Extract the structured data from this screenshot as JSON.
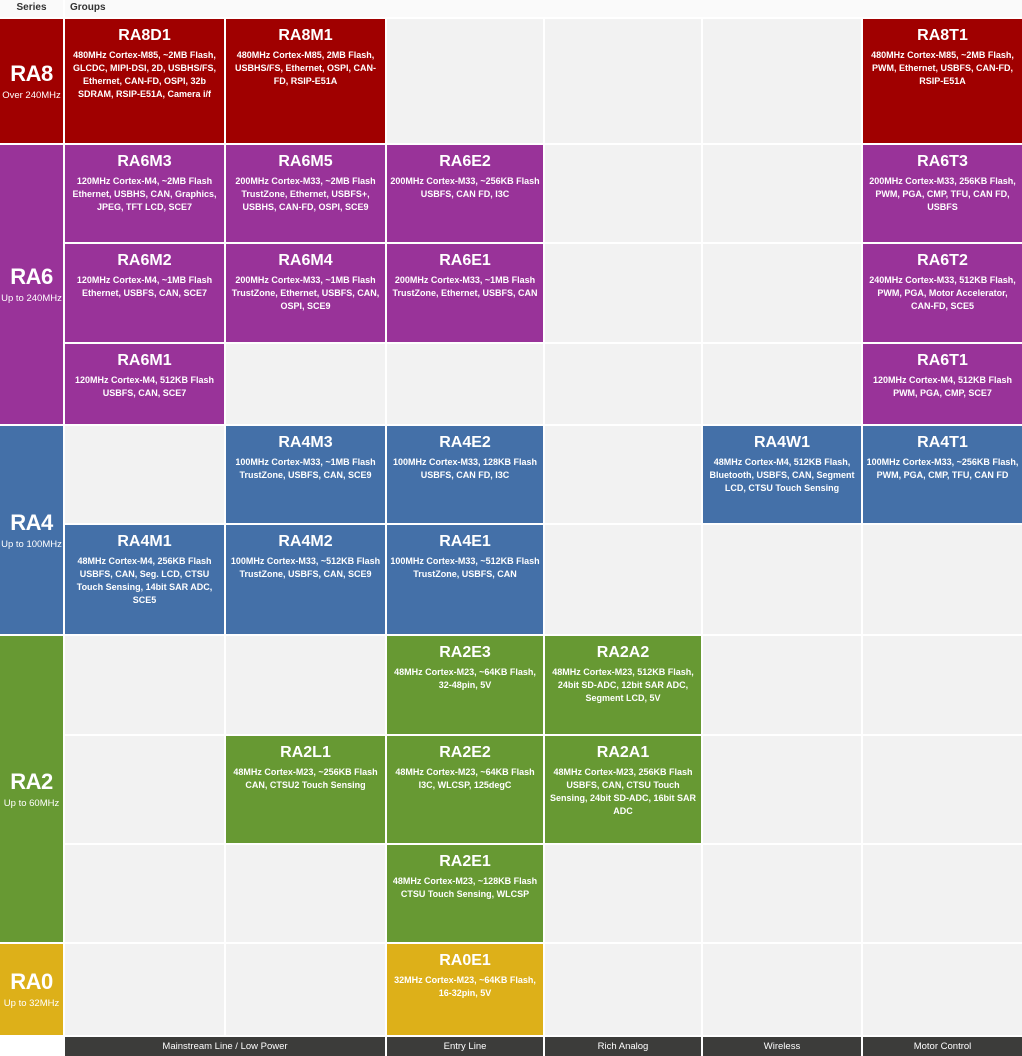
{
  "header": {
    "series": "Series",
    "groups": "Groups"
  },
  "colors": {
    "RA8": "#a00000",
    "RA6": "#993399",
    "RA4": "#4470a8",
    "RA2": "#679933",
    "RA0": "#ddb019",
    "footer": "#3c3c3a",
    "empty": "#f2f2f2"
  },
  "series": [
    {
      "name": "RA8",
      "speed": "Over 240MHz"
    },
    {
      "name": "RA6",
      "speed": "Up to 240MHz"
    },
    {
      "name": "RA4",
      "speed": "Up to 100MHz"
    },
    {
      "name": "RA2",
      "speed": "Up to 60MHz"
    },
    {
      "name": "RA0",
      "speed": "Up to 32MHz"
    }
  ],
  "groups": [
    {
      "name": "RA8D1",
      "desc": "480MHz Cortex-M85, ~2MB Flash, GLCDC, MIPI-DSI, 2D, USBHS/FS, Ethernet, CAN-FD, OSPI, 32b SDRAM, RSIP-E51A, Camera i/f"
    },
    {
      "name": "RA8M1",
      "desc": "480MHz Cortex-M85, 2MB Flash, USBHS/FS, Ethernet, OSPI, CAN-FD, RSIP-E51A"
    },
    {
      "name": "RA8T1",
      "desc": "480MHz Cortex-M85, ~2MB Flash, PWM, Ethernet, USBFS, CAN-FD, RSIP-E51A"
    },
    {
      "name": "RA6M3",
      "desc": "120MHz Cortex-M4, ~2MB Flash Ethernet, USBHS, CAN, Graphics, JPEG, TFT LCD, SCE7"
    },
    {
      "name": "RA6M5",
      "desc": "200MHz Cortex-M33, ~2MB Flash TrustZone, Ethernet, USBFS+, USBHS, CAN-FD, OSPI, SCE9"
    },
    {
      "name": "RA6E2",
      "desc": "200MHz Cortex-M33, ~256KB Flash USBFS, CAN FD, I3C"
    },
    {
      "name": "RA6T3",
      "desc": "200MHz Cortex-M33, 256KB Flash, PWM, PGA, CMP, TFU, CAN FD, USBFS"
    },
    {
      "name": "RA6M2",
      "desc": "120MHz Cortex-M4, ~1MB Flash Ethernet, USBFS, CAN, SCE7"
    },
    {
      "name": "RA6M4",
      "desc": "200MHz Cortex-M33, ~1MB Flash TrustZone, Ethernet, USBFS, CAN, OSPI, SCE9"
    },
    {
      "name": "RA6E1",
      "desc": "200MHz Cortex-M33, ~1MB Flash TrustZone, Ethernet, USBFS, CAN"
    },
    {
      "name": "RA6T2",
      "desc": "240MHz Cortex-M33, 512KB Flash, PWM, PGA, Motor Accelerator, CAN-FD, SCE5"
    },
    {
      "name": "RA6M1",
      "desc": "120MHz Cortex-M4, 512KB Flash USBFS, CAN, SCE7"
    },
    {
      "name": "RA6T1",
      "desc": "120MHz Cortex-M4, 512KB Flash PWM, PGA, CMP, SCE7"
    },
    {
      "name": "RA4M3",
      "desc": "100MHz Cortex-M33, ~1MB Flash TrustZone, USBFS, CAN, SCE9"
    },
    {
      "name": "RA4E2",
      "desc": "100MHz Cortex-M33, 128KB Flash USBFS, CAN FD, I3C"
    },
    {
      "name": "RA4W1",
      "desc": "48MHz Cortex-M4, 512KB Flash, Bluetooth, USBFS, CAN, Segment LCD, CTSU Touch Sensing"
    },
    {
      "name": "RA4T1",
      "desc": "100MHz Cortex-M33, ~256KB Flash, PWM, PGA, CMP, TFU, CAN FD"
    },
    {
      "name": "RA4M1",
      "desc": "48MHz Cortex-M4, 256KB Flash USBFS, CAN, Seg. LCD, CTSU Touch Sensing, 14bit SAR ADC, SCE5"
    },
    {
      "name": "RA4M2",
      "desc": "100MHz Cortex-M33, ~512KB Flash TrustZone, USBFS, CAN, SCE9"
    },
    {
      "name": "RA4E1",
      "desc": "100MHz Cortex-M33, ~512KB Flash TrustZone, USBFS, CAN"
    },
    {
      "name": "RA2E3",
      "desc": "48MHz Cortex-M23, ~64KB Flash, 32-48pin, 5V"
    },
    {
      "name": "RA2A2",
      "desc": "48MHz Cortex-M23, 512KB Flash, 24bit SD-ADC, 12bit SAR ADC, Segment LCD, 5V"
    },
    {
      "name": "RA2L1",
      "desc": "48MHz Cortex-M23, ~256KB Flash CAN, CTSU2 Touch Sensing"
    },
    {
      "name": "RA2E2",
      "desc": "48MHz Cortex-M23, ~64KB Flash I3C, WLCSP, 125degC"
    },
    {
      "name": "RA2A1",
      "desc": "48MHz Cortex-M23, 256KB Flash USBFS, CAN, CTSU Touch Sensing, 24bit SD-ADC, 16bit SAR ADC"
    },
    {
      "name": "RA2E1",
      "desc": "48MHz Cortex-M23, ~128KB Flash CTSU Touch Sensing, WLCSP"
    },
    {
      "name": "RA0E1",
      "desc": "32MHz Cortex-M23, ~64KB Flash, 16-32pin, 5V"
    }
  ],
  "footer": [
    "Mainstream Line / Low Power",
    "Entry Line",
    "Rich Analog",
    "Wireless",
    "Motor Control"
  ]
}
